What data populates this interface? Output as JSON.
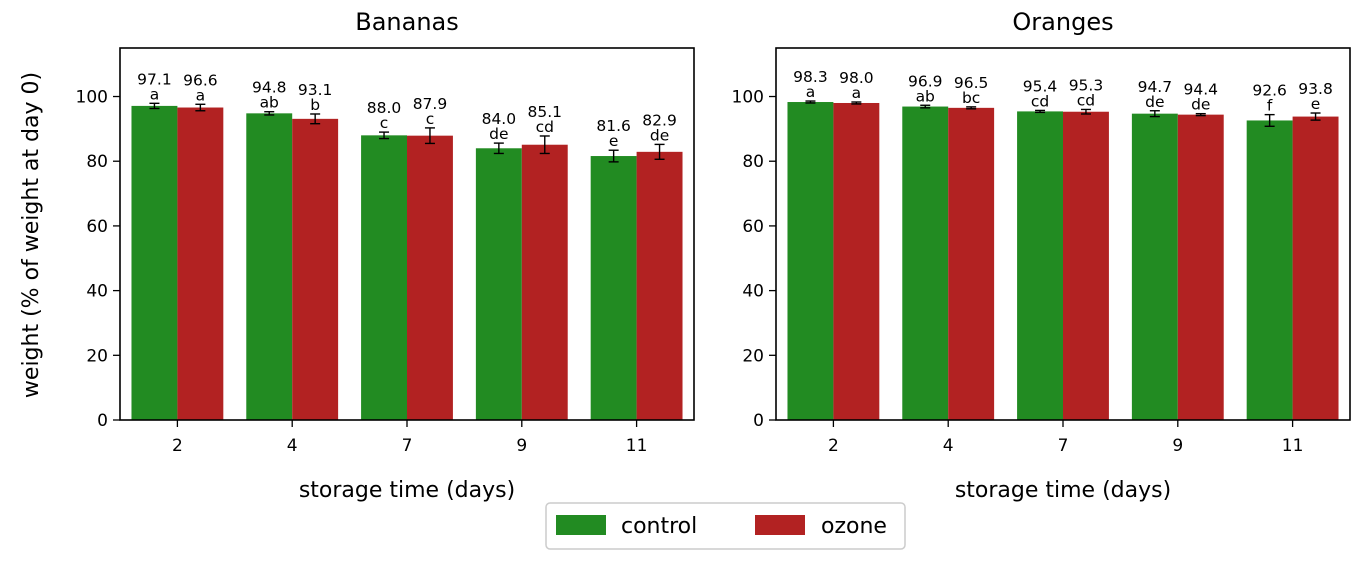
{
  "chart_data": [
    {
      "type": "bar",
      "title": "Bananas",
      "xlabel": "storage time (days)",
      "ylabel": "weight (% of weight at day 0)",
      "categories": [
        "2",
        "4",
        "7",
        "9",
        "11"
      ],
      "ylim": [
        0,
        115
      ],
      "yticks": [
        "0",
        "20",
        "40",
        "60",
        "80",
        "100"
      ],
      "series": [
        {
          "name": "control",
          "values": [
            97.1,
            94.8,
            88.0,
            84.0,
            81.6
          ],
          "value_labels": [
            "97.1",
            "94.8",
            "88.0",
            "84.0",
            "81.6"
          ],
          "errors": [
            0.8,
            0.5,
            1.0,
            1.6,
            1.8
          ],
          "letters": [
            "a",
            "ab",
            "c",
            "de",
            "e"
          ]
        },
        {
          "name": "ozone",
          "values": [
            96.6,
            93.1,
            87.9,
            85.1,
            82.9
          ],
          "value_labels": [
            "96.6",
            "93.1",
            "87.9",
            "85.1",
            "82.9"
          ],
          "errors": [
            1.0,
            1.5,
            2.4,
            2.7,
            2.3
          ],
          "letters": [
            "a",
            "b",
            "c",
            "cd",
            "de"
          ]
        }
      ]
    },
    {
      "type": "bar",
      "title": "Oranges",
      "xlabel": "storage time (days)",
      "ylabel": "",
      "categories": [
        "2",
        "4",
        "7",
        "9",
        "11"
      ],
      "ylim": [
        0,
        115
      ],
      "yticks": [
        "0",
        "20",
        "40",
        "60",
        "80",
        "100"
      ],
      "series": [
        {
          "name": "control",
          "values": [
            98.3,
            96.9,
            95.4,
            94.7,
            92.6
          ],
          "value_labels": [
            "98.3",
            "96.9",
            "95.4",
            "94.7",
            "92.6"
          ],
          "errors": [
            0.3,
            0.4,
            0.3,
            0.9,
            1.8
          ],
          "letters": [
            "a",
            "ab",
            "cd",
            "de",
            "f"
          ]
        },
        {
          "name": "ozone",
          "values": [
            98.0,
            96.5,
            95.3,
            94.4,
            93.8
          ],
          "value_labels": [
            "98.0",
            "96.5",
            "95.3",
            "94.4",
            "93.8"
          ],
          "errors": [
            0.3,
            0.3,
            0.7,
            0.3,
            1.1
          ],
          "letters": [
            "a",
            "bc",
            "cd",
            "de",
            "e"
          ]
        }
      ]
    }
  ],
  "legend": {
    "position": "bottom-center",
    "items": [
      {
        "label": "control",
        "color": "#228B22"
      },
      {
        "label": "ozone",
        "color": "#B22222"
      }
    ]
  },
  "colors": {
    "control": "#228B22",
    "ozone": "#B22222"
  }
}
